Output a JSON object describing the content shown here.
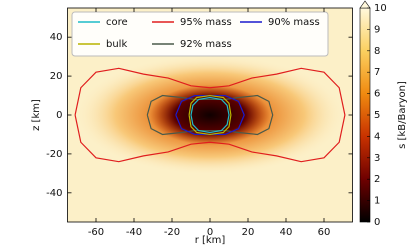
{
  "chart_data": {
    "type": "contour",
    "xlabel": "r [km]",
    "ylabel": "z [km]",
    "xlim": [
      -75,
      75
    ],
    "ylim": [
      -55,
      55
    ],
    "xticks": [
      -60,
      -40,
      -20,
      0,
      20,
      40,
      60
    ],
    "yticks": [
      -40,
      -20,
      0,
      20,
      40
    ],
    "colorbar": {
      "label": "s [kB/Baryon]",
      "lim": [
        0,
        10
      ],
      "ticks": [
        0,
        1,
        2,
        3,
        4,
        5,
        6,
        7,
        8,
        9,
        10
      ],
      "colormap": [
        "#000000",
        "#6e0000",
        "#c83200",
        "#f08a10",
        "#fbd060",
        "#fff8dc"
      ]
    },
    "series": [
      {
        "name": "core",
        "color": "#1fbcc8",
        "x": [
          -10,
          -9,
          -6,
          0,
          6,
          9,
          10,
          9,
          6,
          0,
          -6,
          -9,
          -10
        ],
        "y": [
          0,
          5,
          8,
          9,
          8,
          5,
          0,
          -5,
          -8,
          -9,
          -8,
          -5,
          0
        ]
      },
      {
        "name": "bulk",
        "color": "#b8b400",
        "x": [
          -11,
          -10,
          -7,
          0,
          7,
          10,
          11,
          10,
          7,
          0,
          -7,
          -10,
          -11
        ],
        "y": [
          0,
          6,
          9,
          10,
          9,
          6,
          0,
          -6,
          -9,
          -10,
          -9,
          -6,
          0
        ]
      },
      {
        "name": "95% mass",
        "color": "#e01e1e",
        "x": [
          -71,
          -68,
          -60,
          -48,
          -35,
          -22,
          -10,
          0,
          10,
          22,
          35,
          48,
          60,
          68,
          71,
          68,
          60,
          48,
          35,
          22,
          10,
          0,
          -10,
          -22,
          -35,
          -48,
          -60,
          -68,
          -71
        ],
        "y": [
          0,
          14,
          22,
          24,
          21,
          19,
          15,
          14,
          15,
          19,
          21,
          24,
          22,
          14,
          0,
          -14,
          -22,
          -24,
          -21,
          -19,
          -15,
          -14,
          -15,
          -19,
          -21,
          -24,
          -22,
          -14,
          0
        ]
      },
      {
        "name": "92% mass",
        "color": "#4a5a4a",
        "x": [
          -33,
          -31,
          -25,
          -15,
          -8,
          0,
          8,
          15,
          25,
          31,
          33,
          31,
          25,
          15,
          8,
          0,
          -8,
          -15,
          -25,
          -31,
          -33
        ],
        "y": [
          0,
          7,
          10,
          9,
          8,
          8,
          8,
          9,
          10,
          7,
          0,
          -7,
          -10,
          -9,
          -8,
          -8,
          -8,
          -9,
          -10,
          -7,
          0
        ]
      },
      {
        "name": "90% mass",
        "color": "#1a1acc",
        "x": [
          -18,
          -15,
          -8,
          0,
          8,
          15,
          18,
          15,
          8,
          0,
          -8,
          -15,
          -18
        ],
        "y": [
          0,
          7,
          10,
          10,
          10,
          7,
          0,
          -7,
          -10,
          -10,
          -10,
          -7,
          0
        ]
      }
    ]
  }
}
